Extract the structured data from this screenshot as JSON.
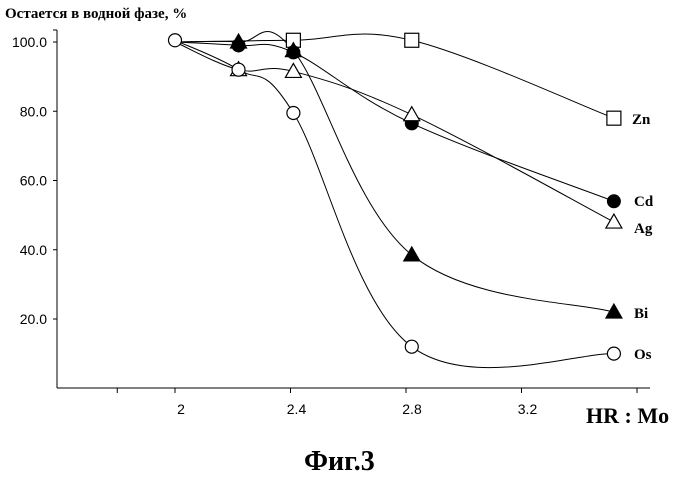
{
  "chart_data": {
    "type": "line",
    "ylabel": "Остается в водной фазе, %",
    "xlabel": "HR : Mo",
    "caption": "Фиг.3",
    "x_ticks": [
      2,
      2.4,
      2.8,
      3.2
    ],
    "x_tick_labels": [
      "2",
      "2.4",
      "2.8",
      "3.2"
    ],
    "y_ticks": [
      20,
      40,
      60,
      80,
      100
    ],
    "y_tick_labels": [
      "20.0",
      "40.0",
      "60.0",
      "80.0",
      "100.0"
    ],
    "xlim": [
      1.75,
      3.65
    ],
    "ylim": [
      0,
      103
    ],
    "grid": false,
    "series": [
      {
        "name": "Zn",
        "marker": "square-open",
        "x": [
          2.0,
          2.41,
          2.82,
          3.52
        ],
        "y": [
          100,
          100.5,
          100.5,
          78
        ]
      },
      {
        "name": "Cd",
        "marker": "circle-filled",
        "x": [
          2.0,
          2.22,
          2.41,
          2.82,
          3.52
        ],
        "y": [
          100,
          99,
          97,
          76.5,
          54
        ]
      },
      {
        "name": "Ag",
        "marker": "triangle-open",
        "x": [
          2.0,
          2.22,
          2.41,
          2.82,
          3.52
        ],
        "y": [
          100,
          92,
          91.5,
          79,
          48
        ]
      },
      {
        "name": "Bi",
        "marker": "triangle-filled",
        "x": [
          2.0,
          2.22,
          2.41,
          2.82,
          3.52
        ],
        "y": [
          100,
          100,
          97.5,
          38.5,
          22
        ]
      },
      {
        "name": "Os",
        "marker": "circle-open",
        "x": [
          2.0,
          2.22,
          2.41,
          2.82,
          3.52
        ],
        "y": [
          100.5,
          92,
          79.5,
          12,
          10
        ]
      }
    ]
  }
}
